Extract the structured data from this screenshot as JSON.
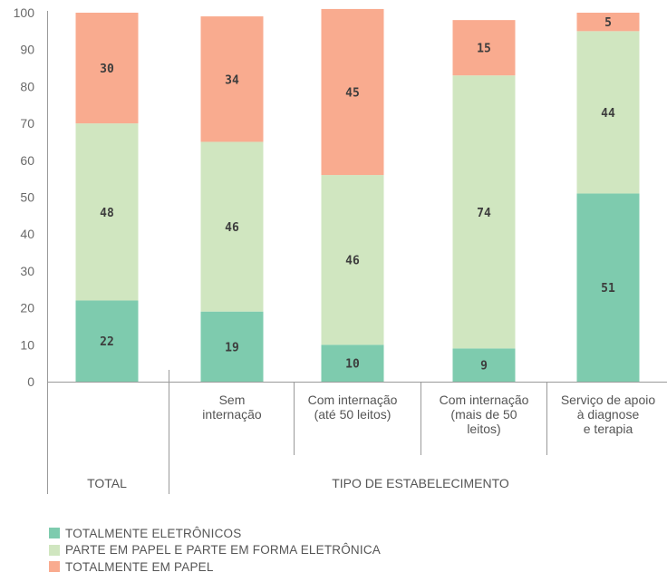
{
  "chart_data": {
    "type": "bar",
    "stacked": true,
    "ylim": [
      0,
      100
    ],
    "yticks": [
      0,
      10,
      20,
      30,
      40,
      50,
      60,
      70,
      80,
      90,
      100
    ],
    "categories": [
      [
        "TOTAL"
      ],
      [
        "Sem",
        "internação"
      ],
      [
        "Com internação",
        "(até 50 leitos)"
      ],
      [
        "Com internação",
        "(mais de 50",
        "leitos)"
      ],
      [
        "Serviço de apoio",
        "à diagnose",
        "e terapia"
      ]
    ],
    "group_labels": [
      "TOTAL",
      "TIPO DE ESTABELECIMENTO"
    ],
    "series": [
      {
        "name": "TOTALMENTE ELETRÔNICOS",
        "color": "#7ecbae",
        "values": [
          22,
          19,
          10,
          9,
          51
        ]
      },
      {
        "name": "PARTE EM PAPEL E PARTE EM FORMA ELETRÔNICA",
        "color": "#d0e6c0",
        "values": [
          48,
          46,
          46,
          74,
          44
        ]
      },
      {
        "name": "TOTALMENTE EM PAPEL",
        "color": "#f9ab8f",
        "values": [
          30,
          34,
          45,
          15,
          5
        ]
      }
    ]
  }
}
